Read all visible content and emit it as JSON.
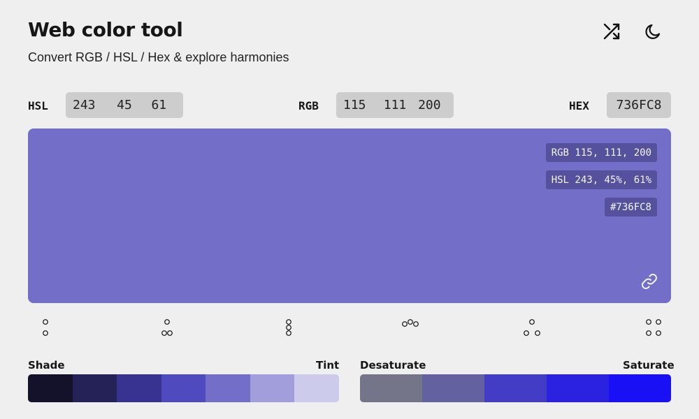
{
  "header": {
    "title": "Web color tool",
    "subtitle": "Convert RGB / HSL / Hex & explore harmonies",
    "icons": [
      "shuffle-icon",
      "moon-icon"
    ]
  },
  "inputs": {
    "hsl": {
      "label": "HSL",
      "h": "243",
      "s": "45",
      "l": "61"
    },
    "rgb": {
      "label": "RGB",
      "r": "115",
      "g": "111",
      "b": "200"
    },
    "hex": {
      "label": "HEX",
      "value": "736FC8"
    }
  },
  "preview": {
    "color": "#736FC8",
    "rgb_text": "RGB 115, 111, 200",
    "hsl_text": "HSL 243, 45%, 61%",
    "hex_text": "#736FC8",
    "icon": "link-icon"
  },
  "harmonies": [
    "complementary",
    "split-complementary",
    "triadic",
    "analogous",
    "triadic-spread",
    "tetradic"
  ],
  "shade_tint": {
    "left_label": "Shade",
    "right_label": "Tint",
    "colors": [
      "#13122a",
      "#252258",
      "#383391",
      "#4f4bbf",
      "#736fc8",
      "#a19edb",
      "#cdcbec"
    ]
  },
  "saturation": {
    "left_label": "Desaturate",
    "right_label": "Saturate",
    "colors": [
      "#75758a",
      "#6461a0",
      "#433cc4",
      "#2a22e0",
      "#1a10f5"
    ]
  }
}
